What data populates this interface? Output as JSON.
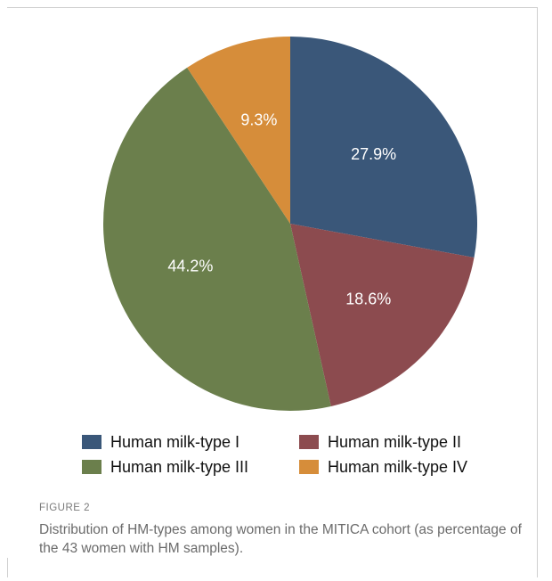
{
  "chart_data": {
    "type": "pie",
    "title": "",
    "slices": [
      {
        "label": "Human milk-type I",
        "value": 27.9,
        "value_label": "27.9%",
        "color": "#3a5779"
      },
      {
        "label": "Human milk-type II",
        "value": 18.6,
        "value_label": "18.6%",
        "color": "#8c4b4f"
      },
      {
        "label": "Human milk-type III",
        "value": 44.2,
        "value_label": "44.2%",
        "color": "#6b7f4c"
      },
      {
        "label": "Human milk-type IV",
        "value": 9.3,
        "value_label": "9.3%",
        "color": "#d68d3a"
      }
    ],
    "legend_position": "bottom"
  },
  "legend": {
    "items": [
      {
        "label": "Human milk-type I",
        "color": "#3a5779"
      },
      {
        "label": "Human milk-type II",
        "color": "#8c4b4f"
      },
      {
        "label": "Human milk-type III",
        "color": "#6b7f4c"
      },
      {
        "label": "Human milk-type IV",
        "color": "#d68d3a"
      }
    ]
  },
  "caption": {
    "figure_label": "FIGURE 2",
    "text": "Distribution of HM-types among women in the MITICA cohort (as percentage of the 43 women with HM samples)."
  }
}
